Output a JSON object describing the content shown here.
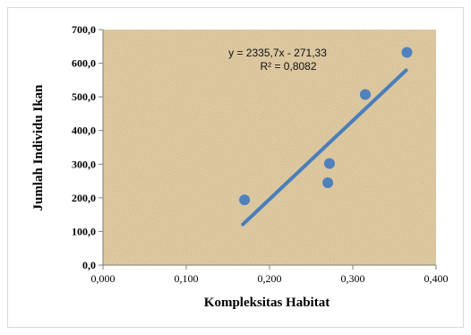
{
  "chart_data": {
    "type": "scatter",
    "title": "",
    "xlabel": "Kompleksitas Habitat",
    "ylabel": "Jumlah Individu Ikan",
    "xlim": [
      0,
      0.4
    ],
    "ylim": [
      0,
      700
    ],
    "x_ticks": [
      0,
      0.1,
      0.2,
      0.3,
      0.4
    ],
    "x_tick_labels": [
      "0,000",
      "0,100",
      "0,200",
      "0,300",
      "0,400"
    ],
    "y_ticks": [
      0,
      100,
      200,
      300,
      400,
      500,
      600,
      700
    ],
    "y_tick_labels": [
      "0,0",
      "100,0",
      "200,0",
      "300,0",
      "400,0",
      "500,0",
      "600,0",
      "700,0"
    ],
    "series": [
      {
        "points": [
          {
            "x": 0.17,
            "y": 194
          },
          {
            "x": 0.27,
            "y": 245
          },
          {
            "x": 0.272,
            "y": 302
          },
          {
            "x": 0.315,
            "y": 507
          },
          {
            "x": 0.365,
            "y": 632
          }
        ],
        "color": "#4f81bd"
      }
    ],
    "trendline": {
      "type": "linear",
      "slope": 2335.7,
      "intercept": -271.33,
      "x_range": [
        0.168,
        0.364
      ],
      "color": "#4a7ebb",
      "equation_label": "y = 2335,7x - 271,33",
      "r2_label": "R² = 0,8082"
    },
    "grid": false,
    "legend": "none",
    "plot_background": "#e8d6b0"
  }
}
